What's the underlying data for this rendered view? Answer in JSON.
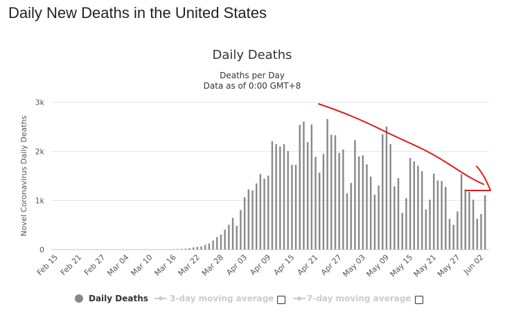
{
  "page": {
    "title": "Daily New Deaths in the United States"
  },
  "chart_data": {
    "type": "bar",
    "title": "Daily Deaths",
    "subtitle": [
      "Deaths per Day",
      "Data as of 0:00 GMT+8"
    ],
    "ylabel": "Novel Coronavirus Daily Deaths",
    "xlabel": "",
    "ylim": [
      0,
      3000
    ],
    "yticks": [
      0,
      1000,
      2000,
      3000
    ],
    "ytick_labels": [
      "0",
      "1k",
      "2k",
      "3k"
    ],
    "grid": "horizontal",
    "bar_color": "#888888",
    "x_start": "Feb 15",
    "x_ticks": [
      "Feb 15",
      "Feb 21",
      "Feb 27",
      "Mar 04",
      "Mar 10",
      "Mar 16",
      "Mar 22",
      "Mar 28",
      "Apr 03",
      "Apr 09",
      "Apr 15",
      "Apr 21",
      "Apr 27",
      "May 03",
      "May 09",
      "May 15",
      "May 21",
      "May 27",
      "Jun 02"
    ],
    "series": [
      {
        "name": "Daily Deaths",
        "values": [
          0,
          0,
          0,
          0,
          0,
          0,
          0,
          0,
          0,
          0,
          0,
          0,
          0,
          0,
          0,
          0,
          0,
          0,
          0,
          0,
          0,
          0,
          0,
          0,
          0,
          0,
          0,
          0,
          0,
          1,
          4,
          6,
          10,
          15,
          25,
          38,
          50,
          60,
          90,
          120,
          180,
          250,
          300,
          400,
          500,
          640,
          480,
          800,
          1060,
          1220,
          1200,
          1340,
          1530,
          1440,
          1500,
          2200,
          2140,
          2090,
          2140,
          2000,
          1720,
          1720,
          2530,
          2600,
          2180,
          2540,
          1880,
          1560,
          1940,
          2650,
          2330,
          2320,
          1960,
          2030,
          1140,
          1350,
          2220,
          1890,
          1910,
          1730,
          1480,
          1110,
          1300,
          2340,
          2500,
          2140,
          1280,
          1450,
          740,
          1040,
          1860,
          1790,
          1700,
          1590,
          810,
          1010,
          1540,
          1400,
          1390,
          1270,
          620,
          500,
          770,
          1530,
          1220,
          1170,
          1010,
          620,
          720,
          1100
        ]
      },
      {
        "name": "3-day moving average",
        "visible": false
      },
      {
        "name": "7-day moving average",
        "visible": false
      }
    ],
    "legend": {
      "placement": "bottom-center"
    },
    "annotation": {
      "type": "hand-drawn trend arrow",
      "color": "#e01b1b",
      "direction": "down"
    }
  }
}
